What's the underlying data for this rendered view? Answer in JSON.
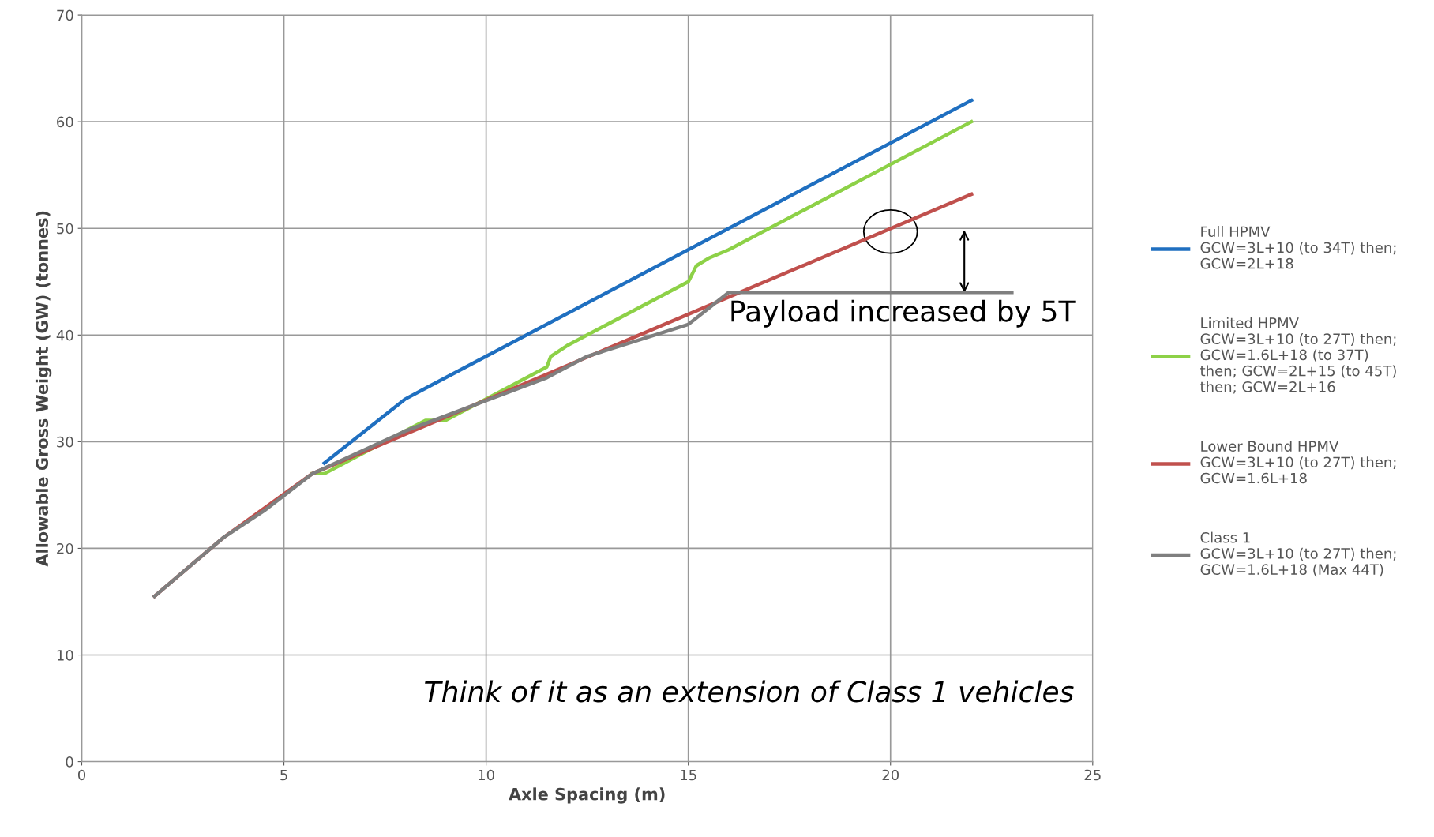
{
  "chart_data": {
    "type": "line",
    "xlabel": "Axle Spacing (m)",
    "ylabel": "Allowable Gross Weight (GW) (tonnes)",
    "xlim": [
      0,
      25
    ],
    "xticks": [
      0,
      5,
      10,
      15,
      20,
      25
    ],
    "ylim": [
      0,
      70
    ],
    "yticks": [
      0,
      10,
      20,
      30,
      40,
      50,
      60,
      70
    ],
    "grid": true,
    "legend": "right",
    "marker": "none",
    "line_style": "solid",
    "series": [
      {
        "name": "Full HPMV\nGCW=3L+10 (to 34T) then;\nGCW=2L+18",
        "color": "#1f6fc0",
        "x": [
          6,
          8,
          8.5,
          22
        ],
        "values": [
          28,
          34,
          35,
          62
        ]
      },
      {
        "name": "Limited HPMV\nGCW=3L+10 (to 27T) then;\nGCW=1.6L+18 (to 37T)\nthen; GCW=2L+15 (to 45T)\nthen; GCW=2L+16",
        "color": "#8dd147",
        "x": [
          5.7,
          6,
          8.5,
          9,
          11.5,
          11.6,
          12,
          15,
          15.2,
          15.5,
          16,
          22
        ],
        "values": [
          27,
          27,
          32,
          32,
          37,
          38,
          39,
          45,
          46.5,
          47.2,
          48,
          60
        ]
      },
      {
        "name": "Lower Bound HPMV\nGCW=3L+10 (to 27T) then;\nGCW=1.6L+18",
        "color": "#c0504d",
        "x": [
          1.8,
          3.5,
          5.7,
          22
        ],
        "values": [
          15.5,
          21,
          27,
          53.2
        ]
      },
      {
        "name": "Class 1\nGCW=3L+10 (to 27T) then;\nGCW=1.6L+18 (Max 44T)",
        "color": "#7f7f7f",
        "x": [
          1.8,
          3.5,
          4.5,
          5.7,
          8,
          11.5,
          12.5,
          15,
          16,
          23
        ],
        "values": [
          15.5,
          21,
          23.5,
          27,
          31,
          36,
          38,
          41,
          44,
          44
        ]
      }
    ],
    "annotations": [
      {
        "text": "Payload increased by 5T",
        "x": 16,
        "y": 44
      },
      "Think of it as an extension of Class 1 vehicles"
    ]
  }
}
